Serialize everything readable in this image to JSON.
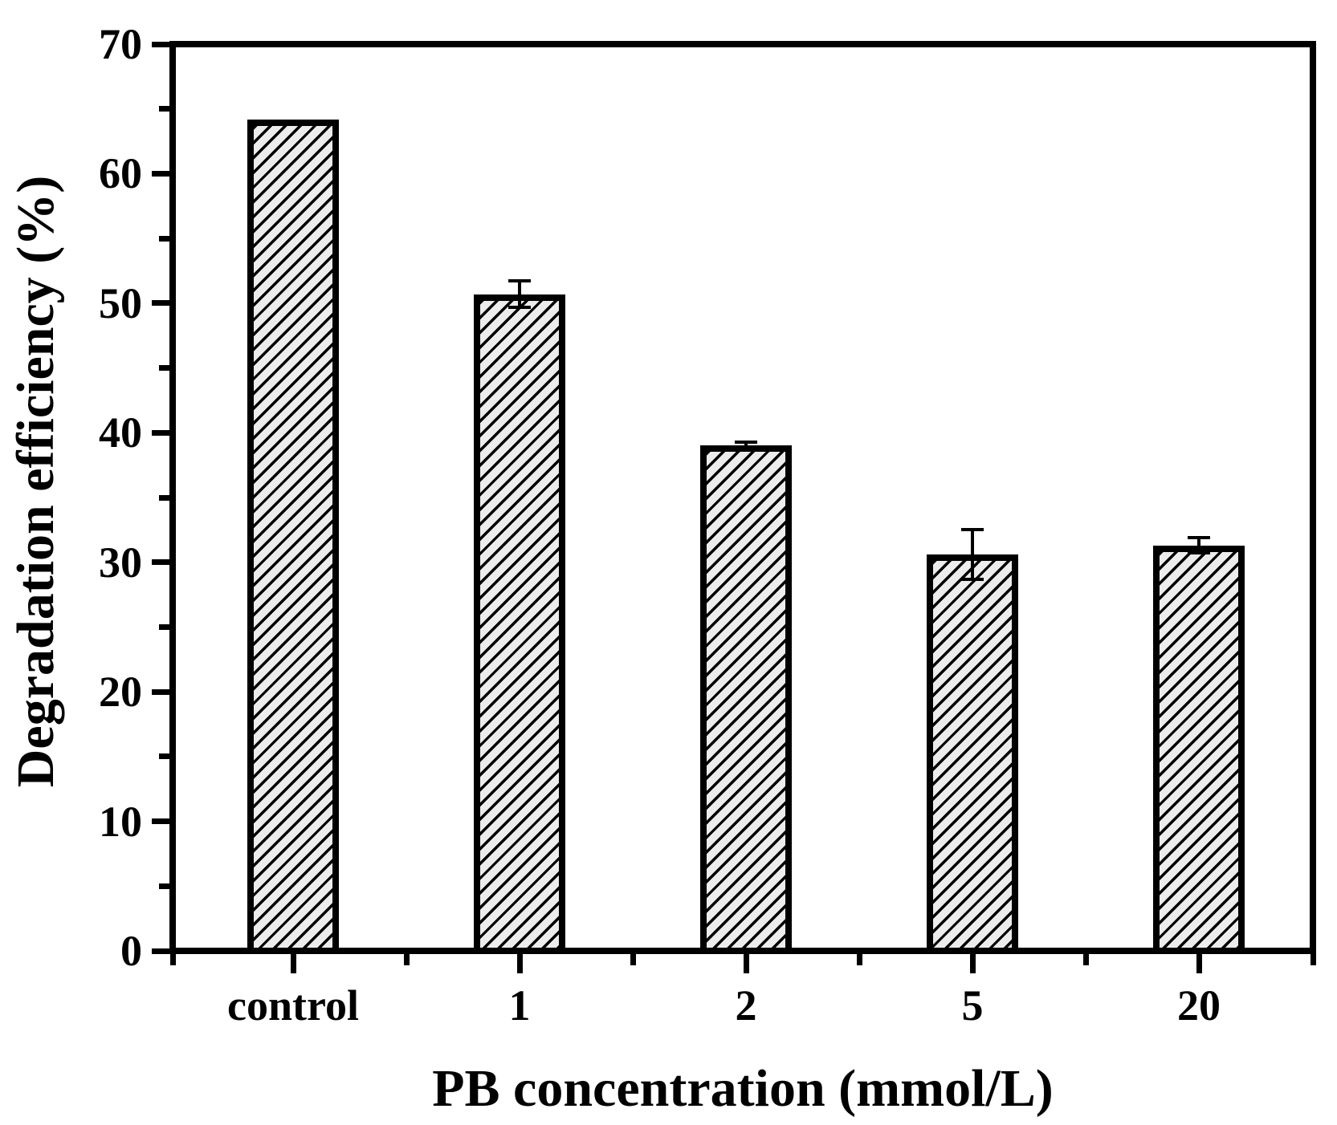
{
  "chart_data": {
    "type": "bar",
    "title": "",
    "xlabel": "PB concentration (mmol/L)",
    "ylabel": "Degradation efficiency (%)",
    "categories": [
      "control",
      "1",
      "2",
      "5",
      "20"
    ],
    "values": [
      64.2,
      50.7,
      39.0,
      30.6,
      31.3
    ],
    "errors": [
      0,
      1.0,
      0.3,
      1.9,
      0.6
    ],
    "ylim": [
      0,
      70
    ],
    "y_major_ticks": [
      0,
      10,
      20,
      30,
      40,
      50,
      60,
      70
    ],
    "y_minor_tick_step": 5,
    "grid": false,
    "legend": false,
    "bar_fill_color": "#ececec",
    "bar_hatch": "diagonal-forward-slash",
    "axis_color": "#000000"
  }
}
